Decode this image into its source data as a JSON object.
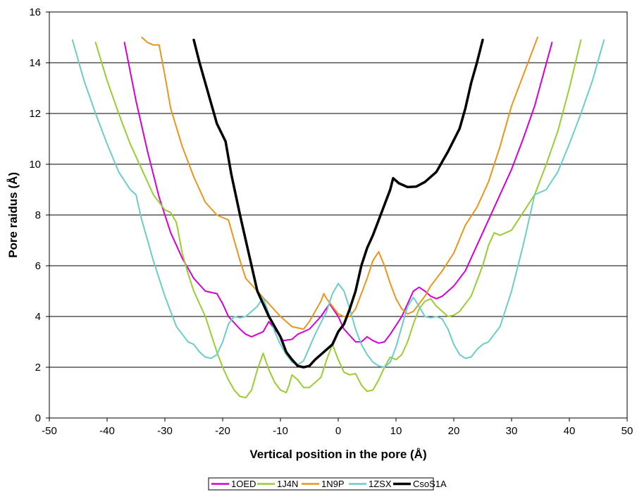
{
  "chart_data": {
    "type": "line",
    "title": "",
    "xlabel": "Vertical position in the pore (Å)",
    "ylabel": "Pore raidus (Å)",
    "xlim": [
      -50,
      50
    ],
    "ylim": [
      0,
      16
    ],
    "xticks": [
      -50,
      -40,
      -30,
      -20,
      -10,
      0,
      10,
      20,
      30,
      40,
      50
    ],
    "yticks": [
      0,
      2,
      4,
      6,
      8,
      10,
      12,
      14,
      16
    ],
    "grid": "horizontal",
    "legend_position": "bottom",
    "series": [
      {
        "name": "1OED",
        "color": "#d400d4",
        "points": [
          [
            -37,
            14.8
          ],
          [
            -35,
            12.5
          ],
          [
            -33,
            10.5
          ],
          [
            -31,
            8.7
          ],
          [
            -29,
            7.3
          ],
          [
            -27,
            6.3
          ],
          [
            -25,
            5.5
          ],
          [
            -23,
            5.0
          ],
          [
            -21,
            4.9
          ],
          [
            -20,
            4.5
          ],
          [
            -19,
            4.0
          ],
          [
            -17,
            3.5
          ],
          [
            -16,
            3.3
          ],
          [
            -15,
            3.2
          ],
          [
            -13,
            3.4
          ],
          [
            -12,
            3.8
          ],
          [
            -11,
            3.5
          ],
          [
            -9.5,
            3.05
          ],
          [
            -8,
            3.1
          ],
          [
            -7,
            3.3
          ],
          [
            -5,
            3.5
          ],
          [
            -3,
            4.0
          ],
          [
            -1.5,
            4.5
          ],
          [
            0,
            4.0
          ],
          [
            1,
            3.5
          ],
          [
            3,
            3.0
          ],
          [
            4,
            3.0
          ],
          [
            5,
            3.2
          ],
          [
            6,
            3.05
          ],
          [
            7,
            2.95
          ],
          [
            8,
            3.0
          ],
          [
            9,
            3.3
          ],
          [
            11,
            4.0
          ],
          [
            12,
            4.5
          ],
          [
            13,
            5.0
          ],
          [
            14,
            5.15
          ],
          [
            15,
            5.0
          ],
          [
            16,
            4.8
          ],
          [
            17,
            4.7
          ],
          [
            18,
            4.8
          ],
          [
            20,
            5.2
          ],
          [
            22,
            5.8
          ],
          [
            24,
            6.8
          ],
          [
            26,
            7.8
          ],
          [
            28,
            8.8
          ],
          [
            30,
            9.8
          ],
          [
            32,
            11.0
          ],
          [
            34,
            12.3
          ],
          [
            37,
            14.8
          ]
        ]
      },
      {
        "name": "1J4N",
        "color": "#9acd32",
        "points": [
          [
            -42,
            14.8
          ],
          [
            -40,
            13.3
          ],
          [
            -38,
            12.0
          ],
          [
            -36,
            10.8
          ],
          [
            -34,
            9.8
          ],
          [
            -32,
            8.8
          ],
          [
            -30,
            8.2
          ],
          [
            -29,
            8.1
          ],
          [
            -28,
            7.7
          ],
          [
            -27,
            6.5
          ],
          [
            -26,
            5.7
          ],
          [
            -25,
            5.0
          ],
          [
            -23,
            4.0
          ],
          [
            -22,
            3.3
          ],
          [
            -21,
            2.6
          ],
          [
            -20,
            2.0
          ],
          [
            -19,
            1.5
          ],
          [
            -18,
            1.1
          ],
          [
            -17,
            0.85
          ],
          [
            -16,
            0.8
          ],
          [
            -15,
            1.1
          ],
          [
            -14,
            1.9
          ],
          [
            -13,
            2.55
          ],
          [
            -12,
            1.9
          ],
          [
            -11,
            1.4
          ],
          [
            -10,
            1.1
          ],
          [
            -9,
            1.0
          ],
          [
            -8.5,
            1.3
          ],
          [
            -8,
            1.7
          ],
          [
            -7,
            1.5
          ],
          [
            -6,
            1.2
          ],
          [
            -5,
            1.2
          ],
          [
            -3,
            1.6
          ],
          [
            -2,
            2.3
          ],
          [
            -1,
            2.9
          ],
          [
            0,
            2.3
          ],
          [
            1,
            1.8
          ],
          [
            2,
            1.7
          ],
          [
            3,
            1.75
          ],
          [
            4,
            1.3
          ],
          [
            5,
            1.05
          ],
          [
            6,
            1.1
          ],
          [
            7,
            1.5
          ],
          [
            8,
            2.0
          ],
          [
            9,
            2.4
          ],
          [
            10,
            2.3
          ],
          [
            11,
            2.5
          ],
          [
            12,
            3.0
          ],
          [
            13,
            3.7
          ],
          [
            14,
            4.3
          ],
          [
            15,
            4.6
          ],
          [
            16,
            4.7
          ],
          [
            17,
            4.4
          ],
          [
            18,
            4.2
          ],
          [
            19,
            4.0
          ],
          [
            20,
            4.05
          ],
          [
            21,
            4.2
          ],
          [
            23,
            4.8
          ],
          [
            25,
            6.0
          ],
          [
            26,
            6.8
          ],
          [
            27,
            7.3
          ],
          [
            28,
            7.2
          ],
          [
            30,
            7.4
          ],
          [
            32,
            8.1
          ],
          [
            34,
            8.8
          ],
          [
            36,
            10.0
          ],
          [
            38,
            11.3
          ],
          [
            40,
            13.0
          ],
          [
            42,
            14.9
          ]
        ]
      },
      {
        "name": "1N9P",
        "color": "#e8961e",
        "points": [
          [
            -34,
            15.0
          ],
          [
            -33,
            14.8
          ],
          [
            -32,
            14.7
          ],
          [
            -31,
            14.7
          ],
          [
            -30,
            13.5
          ],
          [
            -29,
            12.2
          ],
          [
            -27,
            10.7
          ],
          [
            -25,
            9.5
          ],
          [
            -23,
            8.5
          ],
          [
            -21,
            8.0
          ],
          [
            -19,
            7.8
          ],
          [
            -18,
            7.0
          ],
          [
            -17,
            6.2
          ],
          [
            -16,
            5.5
          ],
          [
            -14,
            5.0
          ],
          [
            -12,
            4.5
          ],
          [
            -10,
            4.0
          ],
          [
            -8,
            3.6
          ],
          [
            -6,
            3.5
          ],
          [
            -5,
            3.8
          ],
          [
            -4,
            4.2
          ],
          [
            -3,
            4.6
          ],
          [
            -2.5,
            4.9
          ],
          [
            -2,
            4.7
          ],
          [
            -1,
            4.4
          ],
          [
            0,
            4.1
          ],
          [
            1,
            4.0
          ],
          [
            2,
            4.0
          ],
          [
            3,
            4.3
          ],
          [
            4,
            4.9
          ],
          [
            5,
            5.5
          ],
          [
            6,
            6.2
          ],
          [
            7,
            6.55
          ],
          [
            8,
            6.0
          ],
          [
            9,
            5.3
          ],
          [
            10,
            4.7
          ],
          [
            11,
            4.3
          ],
          [
            12,
            4.1
          ],
          [
            13,
            4.2
          ],
          [
            14,
            4.5
          ],
          [
            15,
            4.8
          ],
          [
            16,
            5.2
          ],
          [
            18,
            5.8
          ],
          [
            20,
            6.5
          ],
          [
            22,
            7.6
          ],
          [
            24,
            8.3
          ],
          [
            26,
            9.3
          ],
          [
            28,
            10.7
          ],
          [
            30,
            12.3
          ],
          [
            32,
            13.5
          ],
          [
            34.5,
            15.0
          ]
        ]
      },
      {
        "name": "1ZSX",
        "color": "#6ccccc",
        "points": [
          [
            -46,
            14.9
          ],
          [
            -44,
            13.3
          ],
          [
            -42,
            12.0
          ],
          [
            -40,
            10.8
          ],
          [
            -38,
            9.7
          ],
          [
            -36,
            9.0
          ],
          [
            -35,
            8.8
          ],
          [
            -34,
            7.8
          ],
          [
            -32,
            6.2
          ],
          [
            -30,
            4.8
          ],
          [
            -28,
            3.6
          ],
          [
            -26,
            3.0
          ],
          [
            -25,
            2.9
          ],
          [
            -24,
            2.6
          ],
          [
            -23,
            2.4
          ],
          [
            -22,
            2.35
          ],
          [
            -21,
            2.5
          ],
          [
            -20,
            3.0
          ],
          [
            -19,
            3.7
          ],
          [
            -18,
            4.0
          ],
          [
            -17,
            3.95
          ],
          [
            -16,
            4.0
          ],
          [
            -14,
            4.4
          ],
          [
            -13,
            4.75
          ],
          [
            -12,
            4.1
          ],
          [
            -11,
            3.4
          ],
          [
            -10,
            2.9
          ],
          [
            -9,
            2.5
          ],
          [
            -8,
            2.2
          ],
          [
            -7,
            2.1
          ],
          [
            -6,
            2.25
          ],
          [
            -4,
            3.3
          ],
          [
            -2,
            4.2
          ],
          [
            -1,
            4.9
          ],
          [
            0,
            5.3
          ],
          [
            1,
            5.0
          ],
          [
            2,
            4.3
          ],
          [
            3,
            3.5
          ],
          [
            4,
            2.9
          ],
          [
            5,
            2.5
          ],
          [
            6,
            2.2
          ],
          [
            7,
            2.05
          ],
          [
            8,
            2.0
          ],
          [
            9,
            2.2
          ],
          [
            10,
            2.8
          ],
          [
            11,
            3.6
          ],
          [
            12,
            4.4
          ],
          [
            13,
            4.75
          ],
          [
            14,
            4.4
          ],
          [
            15,
            4.0
          ],
          [
            16,
            3.95
          ],
          [
            17,
            4.0
          ],
          [
            18,
            3.9
          ],
          [
            19,
            3.5
          ],
          [
            20,
            2.9
          ],
          [
            21,
            2.5
          ],
          [
            22,
            2.35
          ],
          [
            23,
            2.4
          ],
          [
            24,
            2.7
          ],
          [
            25,
            2.9
          ],
          [
            26,
            3.0
          ],
          [
            28,
            3.6
          ],
          [
            30,
            5.0
          ],
          [
            32,
            6.8
          ],
          [
            34,
            8.8
          ],
          [
            36,
            9.0
          ],
          [
            38,
            9.7
          ],
          [
            40,
            10.8
          ],
          [
            42,
            12.0
          ],
          [
            44,
            13.3
          ],
          [
            46,
            14.9
          ]
        ]
      },
      {
        "name": "CsoS1A",
        "color": "#000000",
        "points": [
          [
            -25,
            14.9
          ],
          [
            -24,
            14.0
          ],
          [
            -23,
            13.2
          ],
          [
            -22,
            12.4
          ],
          [
            -21,
            11.6
          ],
          [
            -19.5,
            10.9
          ],
          [
            -18.5,
            9.6
          ],
          [
            -17,
            8.0
          ],
          [
            -15.5,
            6.5
          ],
          [
            -14,
            5.0
          ],
          [
            -12,
            4.0
          ],
          [
            -10,
            3.2
          ],
          [
            -9,
            2.6
          ],
          [
            -8,
            2.3
          ],
          [
            -7,
            2.05
          ],
          [
            -6,
            2.0
          ],
          [
            -5,
            2.05
          ],
          [
            -4,
            2.3
          ],
          [
            -2.5,
            2.6
          ],
          [
            -1,
            2.9
          ],
          [
            0,
            3.4
          ],
          [
            1,
            3.7
          ],
          [
            2,
            4.3
          ],
          [
            3,
            5.0
          ],
          [
            4,
            6.0
          ],
          [
            5,
            6.7
          ],
          [
            6,
            7.2
          ],
          [
            7,
            7.8
          ],
          [
            8,
            8.4
          ],
          [
            9,
            9.0
          ],
          [
            9.5,
            9.45
          ],
          [
            10.5,
            9.25
          ],
          [
            12,
            9.1
          ],
          [
            13.5,
            9.12
          ],
          [
            15,
            9.3
          ],
          [
            17,
            9.7
          ],
          [
            19,
            10.5
          ],
          [
            21,
            11.4
          ],
          [
            22,
            12.2
          ],
          [
            23,
            13.2
          ],
          [
            24,
            14.0
          ],
          [
            25,
            14.9
          ]
        ]
      }
    ]
  }
}
